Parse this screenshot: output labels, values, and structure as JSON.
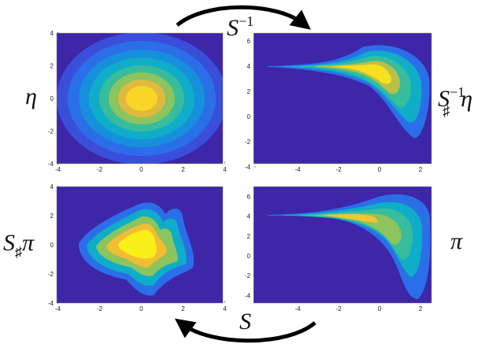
{
  "arrows": [
    {
      "base": "S",
      "sup": "−1"
    },
    {
      "base": "S"
    }
  ],
  "panels": [
    {
      "label": {
        "base": "η"
      },
      "xticks": [
        -4,
        -2,
        0,
        2,
        4
      ],
      "yticks": [
        -4,
        -2,
        0,
        2,
        4
      ]
    },
    {
      "label": {
        "base": "S",
        "sub": "♯",
        "sup": "−1",
        "tail": "η"
      },
      "xticks": [
        -4,
        -2,
        0,
        2
      ],
      "yticks": [
        -4,
        -2,
        0,
        2,
        4,
        6
      ]
    },
    {
      "label": {
        "base": "S",
        "sub": "♯",
        "tail": "π"
      },
      "xticks": [
        -4,
        -2,
        0,
        2,
        4
      ],
      "yticks": [
        -4,
        -2,
        0,
        2,
        4
      ]
    },
    {
      "label": {
        "base": "π"
      },
      "xticks": [
        -4,
        -2,
        0,
        2
      ],
      "yticks": [
        -4,
        -2,
        0,
        2,
        4,
        6
      ]
    }
  ]
}
